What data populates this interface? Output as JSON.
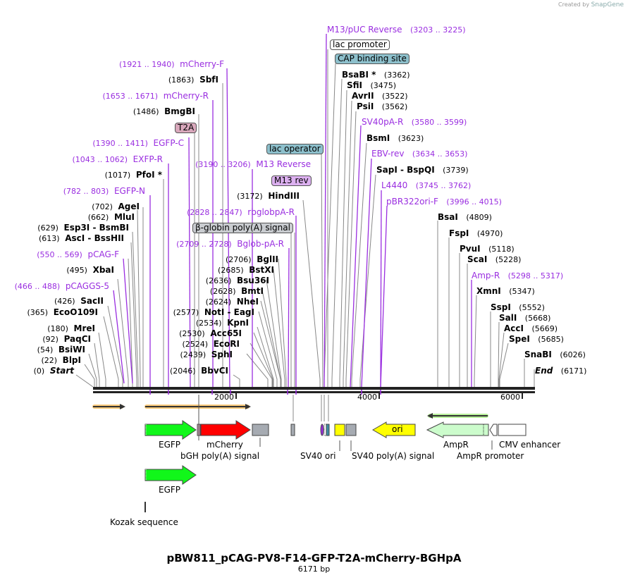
{
  "credit": {
    "prefix": "Created by",
    "brand": "SnapGene"
  },
  "title": "pBW811_pCAG-PV8-F14-GFP-T2A-mCherry-BGHpA",
  "length_label": "6171 bp",
  "axis": {
    "ticks": [
      "2000",
      "4000",
      "6000"
    ]
  },
  "left_labels": [
    {
      "pos": "(1921 .. 1940)",
      "name": "mCherry-F",
      "type": "primer"
    },
    {
      "pos": "(1863)",
      "name": "SbfI",
      "type": "enzyme"
    },
    {
      "pos": "(1653 .. 1671)",
      "name": "mCherry-R",
      "type": "primer"
    },
    {
      "pos": "(1486)",
      "name": "BmgBI",
      "type": "enzyme"
    },
    {
      "pos": "(1390 .. 1411)",
      "name": "EGFP-C",
      "type": "primer"
    },
    {
      "pos": "(1043 .. 1062)",
      "name": "EXFP-R",
      "type": "primer"
    },
    {
      "pos": "(1017)",
      "name": "PfoI *",
      "type": "enzyme"
    },
    {
      "pos": "(782 .. 803)",
      "name": "EGFP-N",
      "type": "primer"
    },
    {
      "pos": "(702)",
      "name": "AgeI",
      "type": "enzyme"
    },
    {
      "pos": "(662)",
      "name": "MluI",
      "type": "enzyme"
    },
    {
      "pos": "(629)",
      "name": "Esp3I  - BsmBI",
      "type": "enzyme"
    },
    {
      "pos": "(613)",
      "name": "AscI  - BssHII",
      "type": "enzyme"
    },
    {
      "pos": "(550 .. 569)",
      "name": "pCAG-F",
      "type": "primer"
    },
    {
      "pos": "(495)",
      "name": "XbaI",
      "type": "enzyme"
    },
    {
      "pos": "(466 .. 488)",
      "name": "pCAGGS-5",
      "type": "primer"
    },
    {
      "pos": "(426)",
      "name": "SacII",
      "type": "enzyme"
    },
    {
      "pos": "(365)",
      "name": "EcoO109I",
      "type": "enzyme"
    },
    {
      "pos": "(180)",
      "name": "MreI",
      "type": "enzyme"
    },
    {
      "pos": "(92)",
      "name": "PaqCI",
      "type": "enzyme"
    },
    {
      "pos": "(54)",
      "name": "BsiWI",
      "type": "enzyme"
    },
    {
      "pos": "(22)",
      "name": "BlpI",
      "type": "enzyme"
    },
    {
      "pos": "(0)",
      "name": "Start",
      "type": "italic"
    }
  ],
  "middle_labels": [
    {
      "pos": "(3190 .. 3206)",
      "name": "M13 Reverse",
      "type": "primer"
    },
    {
      "pos": "(3172)",
      "name": "HindIII",
      "type": "enzyme"
    },
    {
      "pos": "(2828 .. 2847)",
      "name": "rbglobpA-R",
      "type": "primer"
    },
    {
      "pos": "(2709 .. 2728)",
      "name": "Bglob-pA-R",
      "type": "primer"
    },
    {
      "pos": "(2706)",
      "name": "BglII",
      "type": "enzyme"
    },
    {
      "pos": "(2685)",
      "name": "BstXI",
      "type": "enzyme"
    },
    {
      "pos": "(2636)",
      "name": "Bsu36I",
      "type": "enzyme"
    },
    {
      "pos": "(2628)",
      "name": "BmtI",
      "type": "enzyme"
    },
    {
      "pos": "(2624)",
      "name": "NheI",
      "type": "enzyme"
    },
    {
      "pos": "(2577)",
      "name": "NotI  - EagI",
      "type": "enzyme"
    },
    {
      "pos": "(2534)",
      "name": "KpnI",
      "type": "enzyme"
    },
    {
      "pos": "(2530)",
      "name": "Acc65I",
      "type": "enzyme"
    },
    {
      "pos": "(2524)",
      "name": "EcoRI",
      "type": "enzyme"
    },
    {
      "pos": "(2439)",
      "name": "SphI",
      "type": "enzyme"
    },
    {
      "pos": "(2046)",
      "name": "BbvCI",
      "type": "enzyme"
    }
  ],
  "right_labels": [
    {
      "name": "M13/pUC Reverse",
      "pos": "(3203 .. 3225)",
      "type": "primer"
    },
    {
      "name": "BsaBI *",
      "pos": "(3362)",
      "type": "enzyme"
    },
    {
      "name": "SfiI",
      "pos": "(3475)",
      "type": "enzyme"
    },
    {
      "name": "AvrII",
      "pos": "(3522)",
      "type": "enzyme"
    },
    {
      "name": "PsiI",
      "pos": "(3562)",
      "type": "enzyme"
    },
    {
      "name": "SV40pA-R",
      "pos": "(3580 .. 3599)",
      "type": "primer"
    },
    {
      "name": "BsmI",
      "pos": "(3623)",
      "type": "enzyme"
    },
    {
      "name": "EBV-rev",
      "pos": "(3634 .. 3653)",
      "type": "primer"
    },
    {
      "name": "SapI  - BspQI",
      "pos": "(3739)",
      "type": "enzyme"
    },
    {
      "name": "L4440",
      "pos": "(3745 .. 3762)",
      "type": "primer"
    },
    {
      "name": "pBR322ori-F",
      "pos": "(3996 .. 4015)",
      "type": "primer"
    },
    {
      "name": "BsaI",
      "pos": "(4809)",
      "type": "enzyme"
    },
    {
      "name": "FspI",
      "pos": "(4970)",
      "type": "enzyme"
    },
    {
      "name": "PvuI",
      "pos": "(5118)",
      "type": "enzyme"
    },
    {
      "name": "ScaI",
      "pos": "(5228)",
      "type": "enzyme"
    },
    {
      "name": "Amp-R",
      "pos": "(5298 .. 5317)",
      "type": "primer"
    },
    {
      "name": "XmnI",
      "pos": "(5347)",
      "type": "enzyme"
    },
    {
      "name": "SspI",
      "pos": "(5552)",
      "type": "enzyme"
    },
    {
      "name": "SalI",
      "pos": "(5668)",
      "type": "enzyme"
    },
    {
      "name": "AccI",
      "pos": "(5669)",
      "type": "enzyme"
    },
    {
      "name": "SpeI",
      "pos": "(5685)",
      "type": "enzyme"
    },
    {
      "name": "SnaBI",
      "pos": "(6026)",
      "type": "enzyme"
    },
    {
      "name": "End",
      "pos": "(6171)",
      "type": "italic"
    }
  ],
  "tags": {
    "t2a": "T2A",
    "lac_operator": "lac operator",
    "m13_rev": "M13 rev",
    "beta_globin": "β-globin poly(A) signal",
    "lac_promoter": "lac promoter",
    "cap_site": "CAP binding site"
  },
  "features": {
    "egfp": "EGFP",
    "mcherry": "mCherry",
    "bgh": "bGH poly(A) signal",
    "sv40_ori": "SV40 ori",
    "sv40_pa": "SV40 poly(A) signal",
    "ori": "ori",
    "ampr": "AmpR",
    "ampr_promoter": "AmpR promoter",
    "cmv_enhancer": "CMV enhancer",
    "egfp2": "EGFP",
    "kozak": "Kozak sequence"
  },
  "colors": {
    "primer": "#9a2ee0",
    "egfp": "#11f71a",
    "mcherry": "#ff0000",
    "ori": "#ffff00",
    "ampr": "#ccfccc",
    "polyA": "#a6abb2",
    "orf_arrow": "#f9c97a",
    "lac_operator": "#8dc0cc",
    "m13_rev": "#dcb0f0",
    "t2a": "#d9a8bc"
  }
}
